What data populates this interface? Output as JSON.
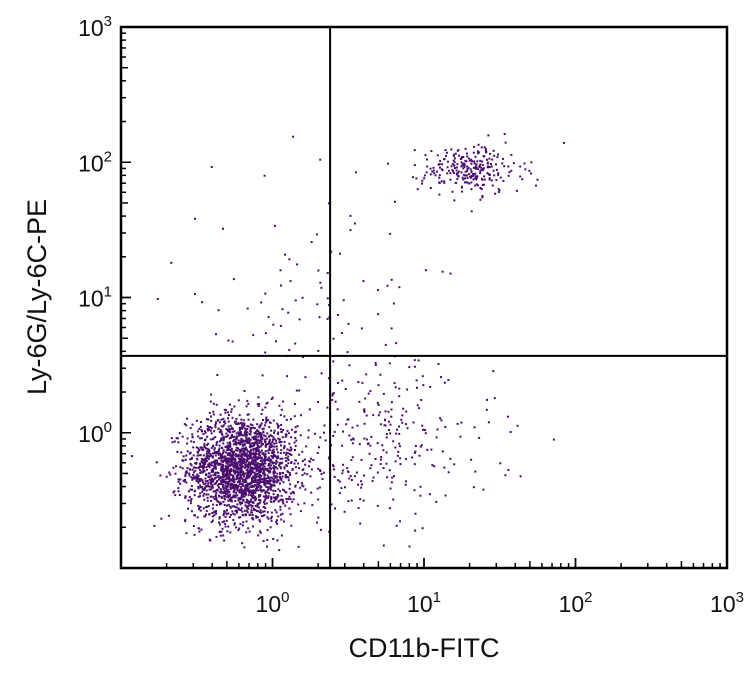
{
  "chart_data": {
    "type": "scatter",
    "xlabel": "CD11b-FITC",
    "ylabel": "Ly-6G/Ly-6C-PE",
    "x_scale": "log",
    "y_scale": "log",
    "xlim": [
      0.1,
      1000
    ],
    "ylim": [
      0.1,
      1000
    ],
    "x_ticks": [
      {
        "base": "10",
        "exp": "0",
        "value": 1
      },
      {
        "base": "10",
        "exp": "1",
        "value": 10
      },
      {
        "base": "10",
        "exp": "2",
        "value": 100
      },
      {
        "base": "10",
        "exp": "3",
        "value": 1000
      }
    ],
    "y_ticks": [
      {
        "base": "10",
        "exp": "0",
        "value": 1
      },
      {
        "base": "10",
        "exp": "1",
        "value": 10
      },
      {
        "base": "10",
        "exp": "2",
        "value": 100
      },
      {
        "base": "10",
        "exp": "3",
        "value": 1000
      }
    ],
    "quadrant_gate": {
      "x": 2.4,
      "y": 3.7
    },
    "grid": false,
    "point_color": "#4a0d6e",
    "populations": [
      {
        "center": [
          0.62,
          0.55
        ],
        "spread_decades": [
          0.18,
          0.2
        ],
        "count": 2200
      },
      {
        "center": [
          20,
          90
        ],
        "spread_decades": [
          0.17,
          0.09
        ],
        "count": 260
      },
      {
        "center": [
          5,
          0.8
        ],
        "spread_decades": [
          0.38,
          0.3
        ],
        "count": 260
      },
      {
        "center": [
          3,
          6
        ],
        "spread_decades": [
          0.4,
          0.45
        ],
        "count": 70
      },
      {
        "center": [
          1,
          10
        ],
        "spread_decades": [
          0.35,
          0.45
        ],
        "count": 45
      }
    ]
  }
}
